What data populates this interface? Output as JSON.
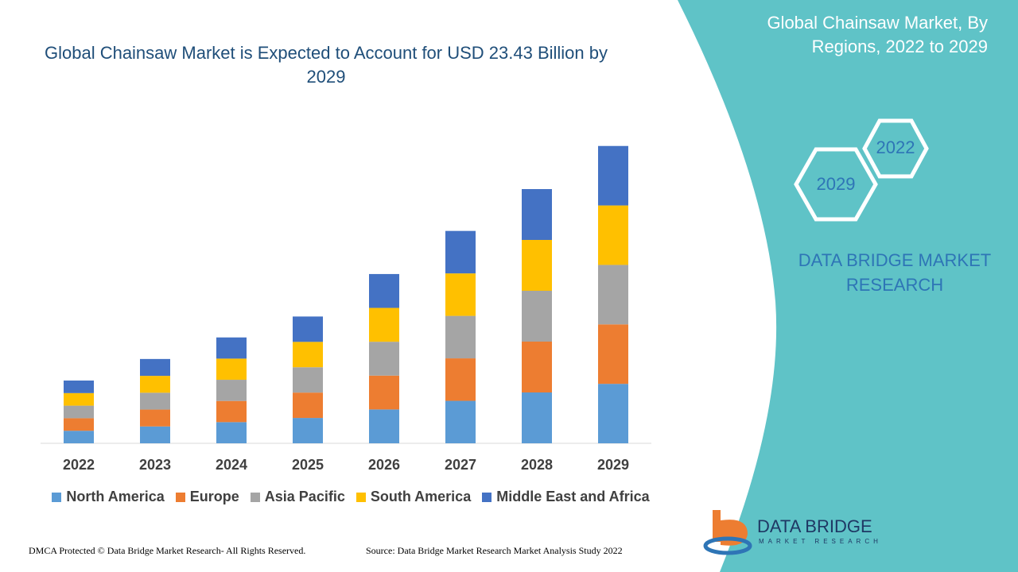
{
  "chart_data": {
    "type": "bar",
    "stacked": true,
    "title": "Global Chainsaw Market is Expected to Account for USD 23.43 Billion by 2029",
    "categories": [
      "2022",
      "2023",
      "2024",
      "2025",
      "2026",
      "2027",
      "2028",
      "2029"
    ],
    "series": [
      {
        "name": "North America",
        "color": "#5b9bd5",
        "values": [
          0.99,
          1.33,
          1.67,
          2.0,
          2.67,
          3.35,
          4.01,
          4.69
        ]
      },
      {
        "name": "Europe",
        "color": "#ed7d31",
        "values": [
          0.99,
          1.33,
          1.67,
          2.0,
          2.67,
          3.35,
          4.01,
          4.69
        ]
      },
      {
        "name": "Asia Pacific",
        "color": "#a5a5a5",
        "values": [
          0.99,
          1.33,
          1.67,
          2.0,
          2.67,
          3.35,
          4.01,
          4.69
        ]
      },
      {
        "name": "South America",
        "color": "#ffc000",
        "values": [
          0.99,
          1.33,
          1.67,
          2.0,
          2.67,
          3.35,
          4.01,
          4.69
        ]
      },
      {
        "name": "Middle East and Africa",
        "color": "#4472c4",
        "values": [
          0.99,
          1.33,
          1.67,
          2.0,
          2.67,
          3.35,
          4.01,
          4.69
        ]
      }
    ],
    "ylim": [
      0,
      25
    ],
    "legend": "bottom"
  },
  "side_panel": {
    "title": "Global Chainsaw Market, By Regions, 2022 to 2029",
    "hex_labels": [
      "2022",
      "2029"
    ],
    "brand": "DATA BRIDGE MARKET RESEARCH"
  },
  "footer": {
    "left": "DMCA Protected © Data Bridge Market Research- All Rights Reserved.",
    "source": "Source: Data Bridge Market Research Market Analysis Study 2022"
  },
  "logo": {
    "name": "DATA BRIDGE",
    "tagline": "MARKET RESEARCH"
  }
}
